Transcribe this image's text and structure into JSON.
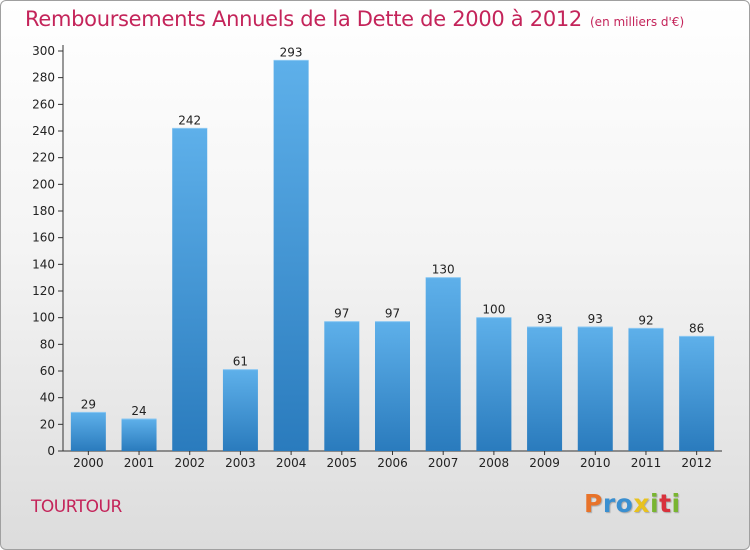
{
  "title": "Remboursements Annuels de la Dette de 2000 à 2012",
  "unit_note": "(en milliers d'€)",
  "commune": "TOURTOUR",
  "logo": {
    "letters": [
      "P",
      "r",
      "o",
      "x",
      "i",
      "t",
      "i"
    ],
    "colors": [
      "#e8732a",
      "#3a8fd0",
      "#3a8fd0",
      "#e8c21e",
      "#79b531",
      "#d8323c",
      "#79b531"
    ]
  },
  "colors": {
    "title": "#c4245a",
    "bar_top": "#5eb0ea",
    "bar_bottom": "#2a7bbd",
    "axis": "#333333"
  },
  "chart_data": {
    "type": "bar",
    "categories": [
      "2000",
      "2001",
      "2002",
      "2003",
      "2004",
      "2005",
      "2006",
      "2007",
      "2008",
      "2009",
      "2010",
      "2011",
      "2012"
    ],
    "values": [
      29,
      24,
      242,
      61,
      293,
      97,
      97,
      130,
      100,
      93,
      93,
      92,
      86
    ],
    "value_labels": [
      "29",
      "24",
      "242",
      "61",
      "293",
      "97",
      "97",
      "130",
      "100",
      "93",
      "93",
      "92",
      "86"
    ],
    "yticks": [
      "0",
      "20",
      "40",
      "60",
      "80",
      "100",
      "120",
      "140",
      "160",
      "180",
      "200",
      "220",
      "240",
      "260",
      "280",
      "300"
    ],
    "ylim": [
      0,
      300
    ],
    "grid": false,
    "legend": "none"
  }
}
